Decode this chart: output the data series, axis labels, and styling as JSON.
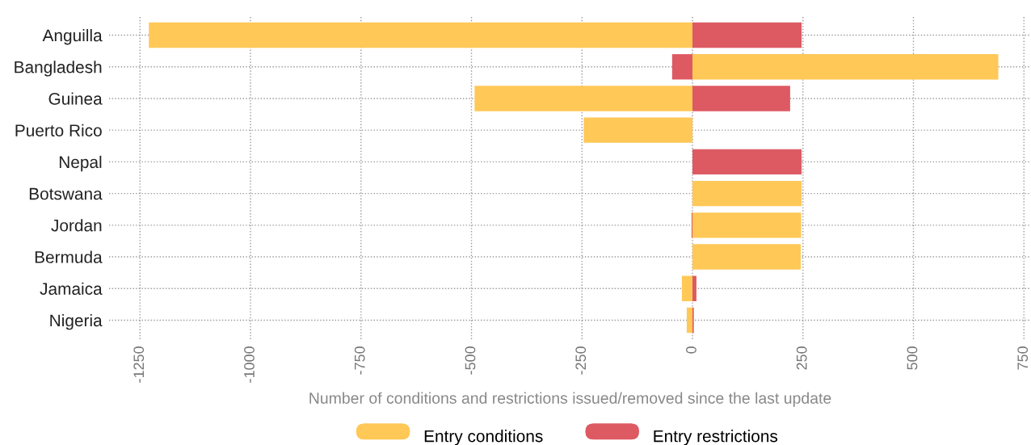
{
  "chart_data": {
    "type": "bar",
    "orientation": "horizontal",
    "stacked": true,
    "categories": [
      "Anguilla",
      "Bangladesh",
      "Guinea",
      "Puerto Rico",
      "Nepal",
      "Botswana",
      "Jordan",
      "Bermuda",
      "Jamaica",
      "Nigeria"
    ],
    "series": [
      {
        "name": "Entry conditions",
        "color": "#ffc857",
        "values": [
          -1230,
          692,
          -493,
          -246,
          0,
          247,
          246,
          245,
          -24,
          -13
        ]
      },
      {
        "name": "Entry restrictions",
        "color": "#dd5a63",
        "values": [
          247,
          -46,
          221,
          0,
          247,
          0,
          -2,
          0,
          9,
          3
        ]
      }
    ],
    "xlabel": "Number of conditions and restrictions issued/removed since the last update",
    "xlim": [
      -1320,
      766
    ],
    "xticks": [
      -1250,
      -1000,
      -750,
      -500,
      -250,
      0,
      250,
      500,
      750
    ],
    "grid": true,
    "legend": "bottom"
  }
}
